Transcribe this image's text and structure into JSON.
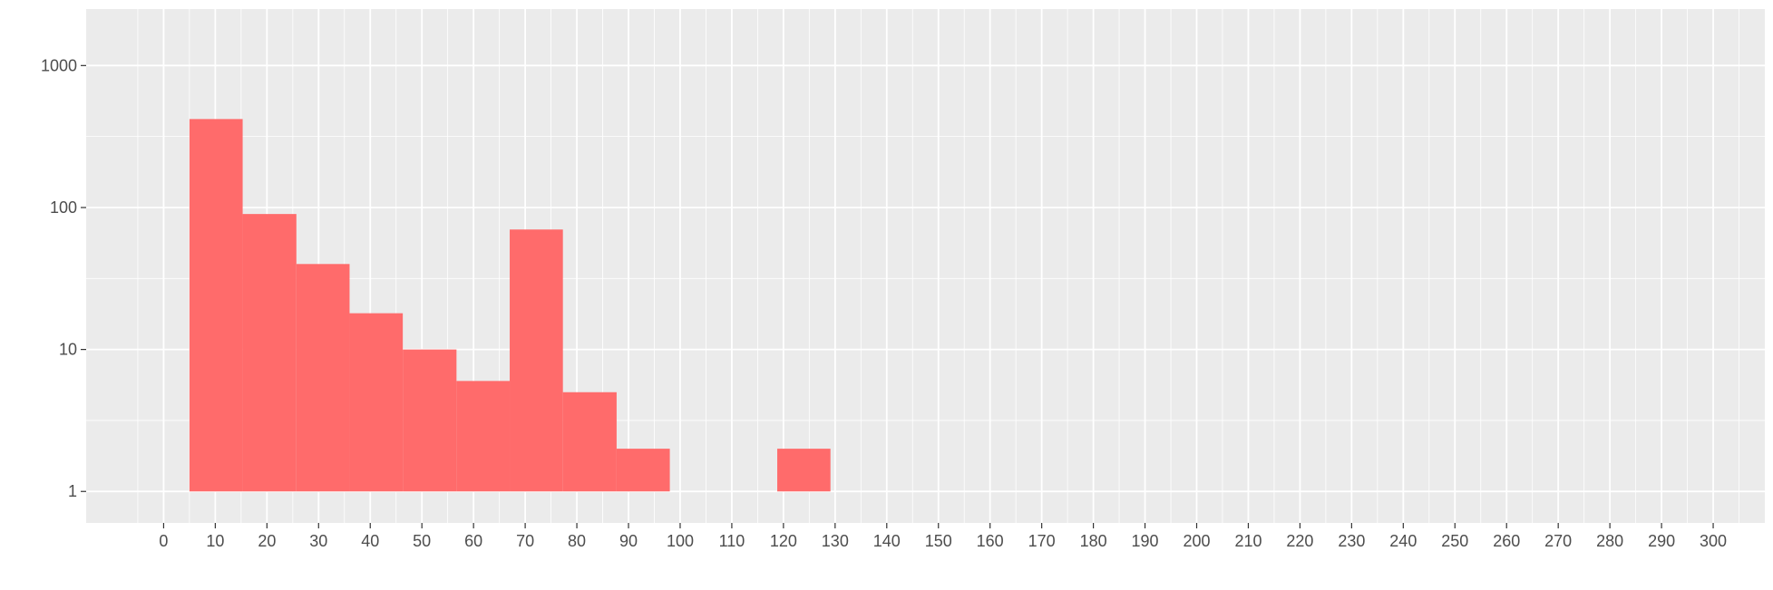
{
  "chart_data": {
    "type": "bar",
    "title": "",
    "xlabel": "",
    "ylabel": "",
    "y_scale": "log10",
    "xlim": [
      -15,
      310
    ],
    "ylim": [
      0.6,
      2500
    ],
    "x_ticks": [
      0,
      10,
      20,
      30,
      40,
      50,
      60,
      70,
      80,
      90,
      100,
      110,
      120,
      130,
      140,
      150,
      160,
      170,
      180,
      190,
      200,
      210,
      220,
      230,
      240,
      250,
      260,
      270,
      280,
      290,
      300
    ],
    "y_ticks": [
      1,
      10,
      100,
      1000
    ],
    "y_tick_labels": [
      "1",
      "10",
      "100",
      "1000"
    ],
    "grid": true,
    "legend": "none",
    "bar_color": "#ff6b6b",
    "bins": [
      {
        "x0": 5.0,
        "x1": 15.3,
        "count": 420
      },
      {
        "x0": 15.3,
        "x1": 25.7,
        "count": 90
      },
      {
        "x0": 25.7,
        "x1": 36.0,
        "count": 40
      },
      {
        "x0": 36.0,
        "x1": 46.3,
        "count": 18
      },
      {
        "x0": 46.3,
        "x1": 56.7,
        "count": 10
      },
      {
        "x0": 56.7,
        "x1": 67.0,
        "count": 6
      },
      {
        "x0": 67.0,
        "x1": 77.3,
        "count": 70
      },
      {
        "x0": 77.3,
        "x1": 87.7,
        "count": 5
      },
      {
        "x0": 87.7,
        "x1": 98.0,
        "count": 2
      },
      {
        "x0": 118.8,
        "x1": 129.1,
        "count": 2
      }
    ]
  }
}
